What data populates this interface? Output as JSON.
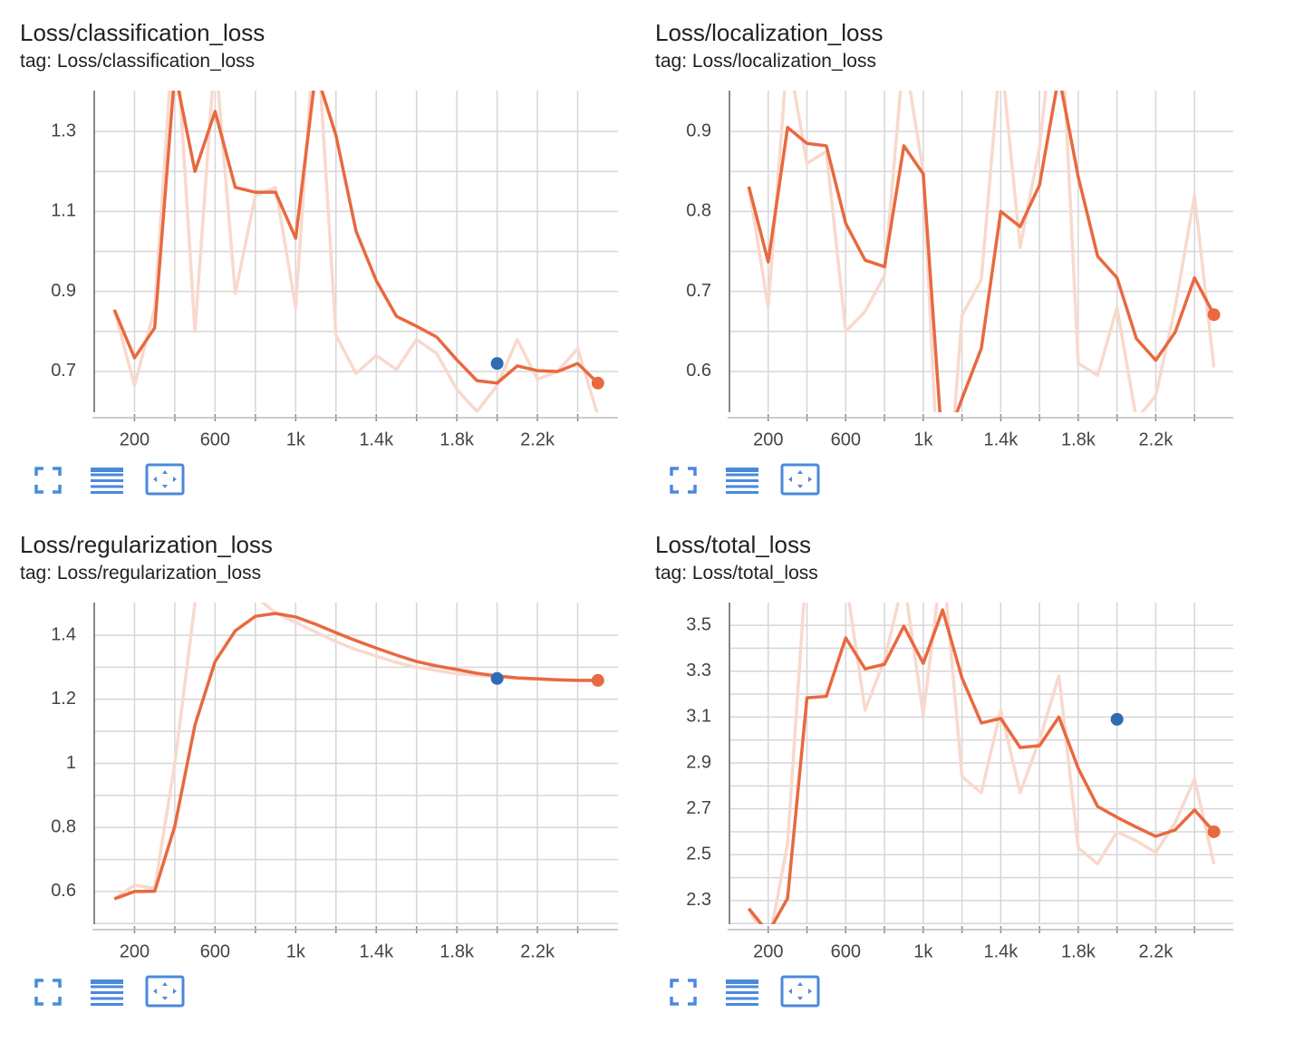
{
  "chart_data": [
    {
      "type": "line",
      "title": "Loss/classification_loss",
      "subtitle": "tag: Loss/classification_loss",
      "x": [
        100,
        200,
        300,
        400,
        500,
        600,
        700,
        800,
        900,
        1000,
        1100,
        1200,
        1300,
        1400,
        1500,
        1600,
        1700,
        1800,
        1900,
        2000,
        2100,
        2200,
        2300,
        2400,
        2500
      ],
      "xlim": [
        0,
        2600
      ],
      "xticks": [
        200,
        600,
        {
          "value": 1000,
          "label": "1k"
        },
        {
          "value": 1400,
          "label": "1.4k"
        },
        {
          "value": 1800,
          "label": "1.8k"
        },
        {
          "value": 2200,
          "label": "2.2k"
        }
      ],
      "minor_xticks": [
        400,
        800,
        1200,
        1600,
        2000,
        2400
      ],
      "ylim": [
        0.598,
        1.402
      ],
      "yticks": [
        1.3,
        1.1,
        0.9,
        0.7
      ],
      "minor_yticks": [
        1.2,
        1.0,
        0.8
      ],
      "series": [
        {
          "color": "#f9d9cd",
          "values": [
            0.855,
            0.664,
            0.859,
            1.6,
            0.8,
            1.5,
            0.895,
            1.14,
            1.16,
            0.86,
            1.6,
            0.79,
            0.695,
            0.74,
            0.705,
            0.78,
            0.745,
            0.655,
            0.6,
            0.665,
            0.78,
            0.68,
            0.7,
            0.757,
            0.59
          ]
        },
        {
          "color": "#e8693f",
          "end_dot": true,
          "values": [
            0.854,
            0.734,
            0.809,
            1.45,
            1.2,
            1.35,
            1.16,
            1.148,
            1.148,
            1.033,
            1.45,
            1.29,
            1.05,
            0.927,
            0.838,
            0.813,
            0.786,
            0.729,
            0.677,
            0.671,
            0.714,
            0.702,
            0.7,
            0.72,
            0.671
          ]
        }
      ],
      "marker": {
        "x": 2000,
        "y": 0.72,
        "color": "#2e6bb5"
      }
    },
    {
      "type": "line",
      "title": "Loss/localization_loss",
      "subtitle": "tag: Loss/localization_loss",
      "x": [
        100,
        200,
        300,
        400,
        500,
        600,
        700,
        800,
        900,
        1000,
        1100,
        1200,
        1300,
        1400,
        1500,
        1600,
        1700,
        1800,
        1900,
        2000,
        2100,
        2200,
        2300,
        2400,
        2500
      ],
      "xlim": [
        0,
        2600
      ],
      "xticks": [
        200,
        600,
        {
          "value": 1000,
          "label": "1k"
        },
        {
          "value": 1400,
          "label": "1.4k"
        },
        {
          "value": 1800,
          "label": "1.8k"
        },
        {
          "value": 2200,
          "label": "2.2k"
        }
      ],
      "minor_xticks": [
        400,
        800,
        1200,
        1600,
        2000,
        2400
      ],
      "ylim": [
        0.549,
        0.951
      ],
      "yticks": [
        0.9,
        0.8,
        0.7,
        0.6
      ],
      "minor_yticks": [
        0.85,
        0.75,
        0.65
      ],
      "series": [
        {
          "color": "#f9d9cd",
          "values": [
            0.831,
            0.68,
            1.0,
            0.86,
            0.875,
            0.65,
            0.675,
            0.72,
            1.0,
            0.85,
            0.35,
            0.67,
            0.715,
            1.0,
            0.755,
            0.88,
            1.1,
            0.61,
            0.595,
            0.68,
            0.54,
            0.57,
            0.68,
            0.82,
            0.605
          ]
        },
        {
          "color": "#e8693f",
          "end_dot": true,
          "values": [
            0.831,
            0.737,
            0.905,
            0.885,
            0.882,
            0.785,
            0.739,
            0.731,
            0.882,
            0.847,
            0.5,
            0.566,
            0.629,
            0.8,
            0.781,
            0.833,
            0.97,
            0.843,
            0.744,
            0.717,
            0.641,
            0.614,
            0.649,
            0.717,
            0.671
          ]
        }
      ]
    },
    {
      "type": "line",
      "title": "Loss/regularization_loss",
      "subtitle": "tag: Loss/regularization_loss",
      "x": [
        100,
        200,
        300,
        400,
        500,
        600,
        700,
        800,
        900,
        1000,
        1100,
        1200,
        1300,
        1400,
        1500,
        1600,
        1700,
        1800,
        1900,
        2000,
        2100,
        2200,
        2300,
        2400,
        2500
      ],
      "xlim": [
        0,
        2600
      ],
      "xticks": [
        200,
        600,
        {
          "value": 1000,
          "label": "1k"
        },
        {
          "value": 1400,
          "label": "1.4k"
        },
        {
          "value": 1800,
          "label": "1.8k"
        },
        {
          "value": 2200,
          "label": "2.2k"
        }
      ],
      "minor_xticks": [
        400,
        800,
        1200,
        1600,
        2000,
        2400
      ],
      "ylim": [
        0.498,
        1.502
      ],
      "yticks": [
        1.4,
        1.2,
        1,
        0.8,
        0.6
      ],
      "minor_yticks": [
        1.3,
        1.1,
        0.9,
        0.7,
        0.5
      ],
      "series": [
        {
          "color": "#f9d9cd",
          "values": [
            0.577,
            0.62,
            0.61,
            1.0,
            1.5,
            1.7,
            1.55,
            1.52,
            1.47,
            1.44,
            1.41,
            1.38,
            1.355,
            1.335,
            1.315,
            1.3,
            1.29,
            1.28,
            1.275,
            1.27,
            1.265,
            1.262,
            1.26,
            1.259,
            1.258
          ]
        },
        {
          "color": "#e8693f",
          "end_dot": true,
          "values": [
            0.577,
            0.6,
            0.601,
            0.804,
            1.12,
            1.318,
            1.414,
            1.459,
            1.468,
            1.457,
            1.434,
            1.408,
            1.383,
            1.36,
            1.338,
            1.318,
            1.304,
            1.293,
            1.281,
            1.273,
            1.267,
            1.264,
            1.261,
            1.259,
            1.259
          ]
        }
      ],
      "marker": {
        "x": 2000,
        "y": 1.265,
        "color": "#2e6bb5"
      }
    },
    {
      "type": "line",
      "title": "Loss/total_loss",
      "subtitle": "tag: Loss/total_loss",
      "x": [
        100,
        200,
        300,
        400,
        500,
        600,
        700,
        800,
        900,
        1000,
        1100,
        1200,
        1300,
        1400,
        1500,
        1600,
        1700,
        1800,
        1900,
        2000,
        2100,
        2200,
        2300,
        2400,
        2500
      ],
      "xlim": [
        0,
        2600
      ],
      "xticks": [
        200,
        600,
        {
          "value": 1000,
          "label": "1k"
        },
        {
          "value": 1400,
          "label": "1.4k"
        },
        {
          "value": 1800,
          "label": "1.8k"
        },
        {
          "value": 2200,
          "label": "2.2k"
        }
      ],
      "minor_xticks": [
        400,
        800,
        1200,
        1600,
        2000,
        2400
      ],
      "ylim": [
        2.197,
        3.599
      ],
      "yticks": [
        3.5,
        3.3,
        3.1,
        2.9,
        2.7,
        2.5,
        2.3
      ],
      "minor_yticks": [
        3.4,
        3.2,
        3.0,
        2.8,
        2.6,
        2.4,
        2.2
      ],
      "series": [
        {
          "color": "#f9d9cd",
          "values": [
            2.265,
            2.1,
            2.55,
            3.8,
            3.65,
            3.7,
            3.13,
            3.35,
            3.7,
            3.11,
            3.8,
            2.84,
            2.77,
            3.13,
            2.77,
            3.0,
            3.28,
            2.53,
            2.46,
            2.6,
            2.56,
            2.51,
            2.64,
            2.83,
            2.46
          ]
        },
        {
          "color": "#e8693f",
          "end_dot": true,
          "values": [
            2.265,
            2.16,
            2.31,
            3.184,
            3.19,
            3.445,
            3.31,
            3.33,
            3.496,
            3.334,
            3.567,
            3.27,
            3.074,
            3.094,
            2.967,
            2.975,
            3.1,
            2.876,
            2.71,
            2.663,
            2.62,
            2.58,
            2.608,
            2.695,
            2.6
          ]
        }
      ],
      "marker": {
        "x": 2000,
        "y": 3.09,
        "color": "#2e6bb5"
      }
    }
  ]
}
